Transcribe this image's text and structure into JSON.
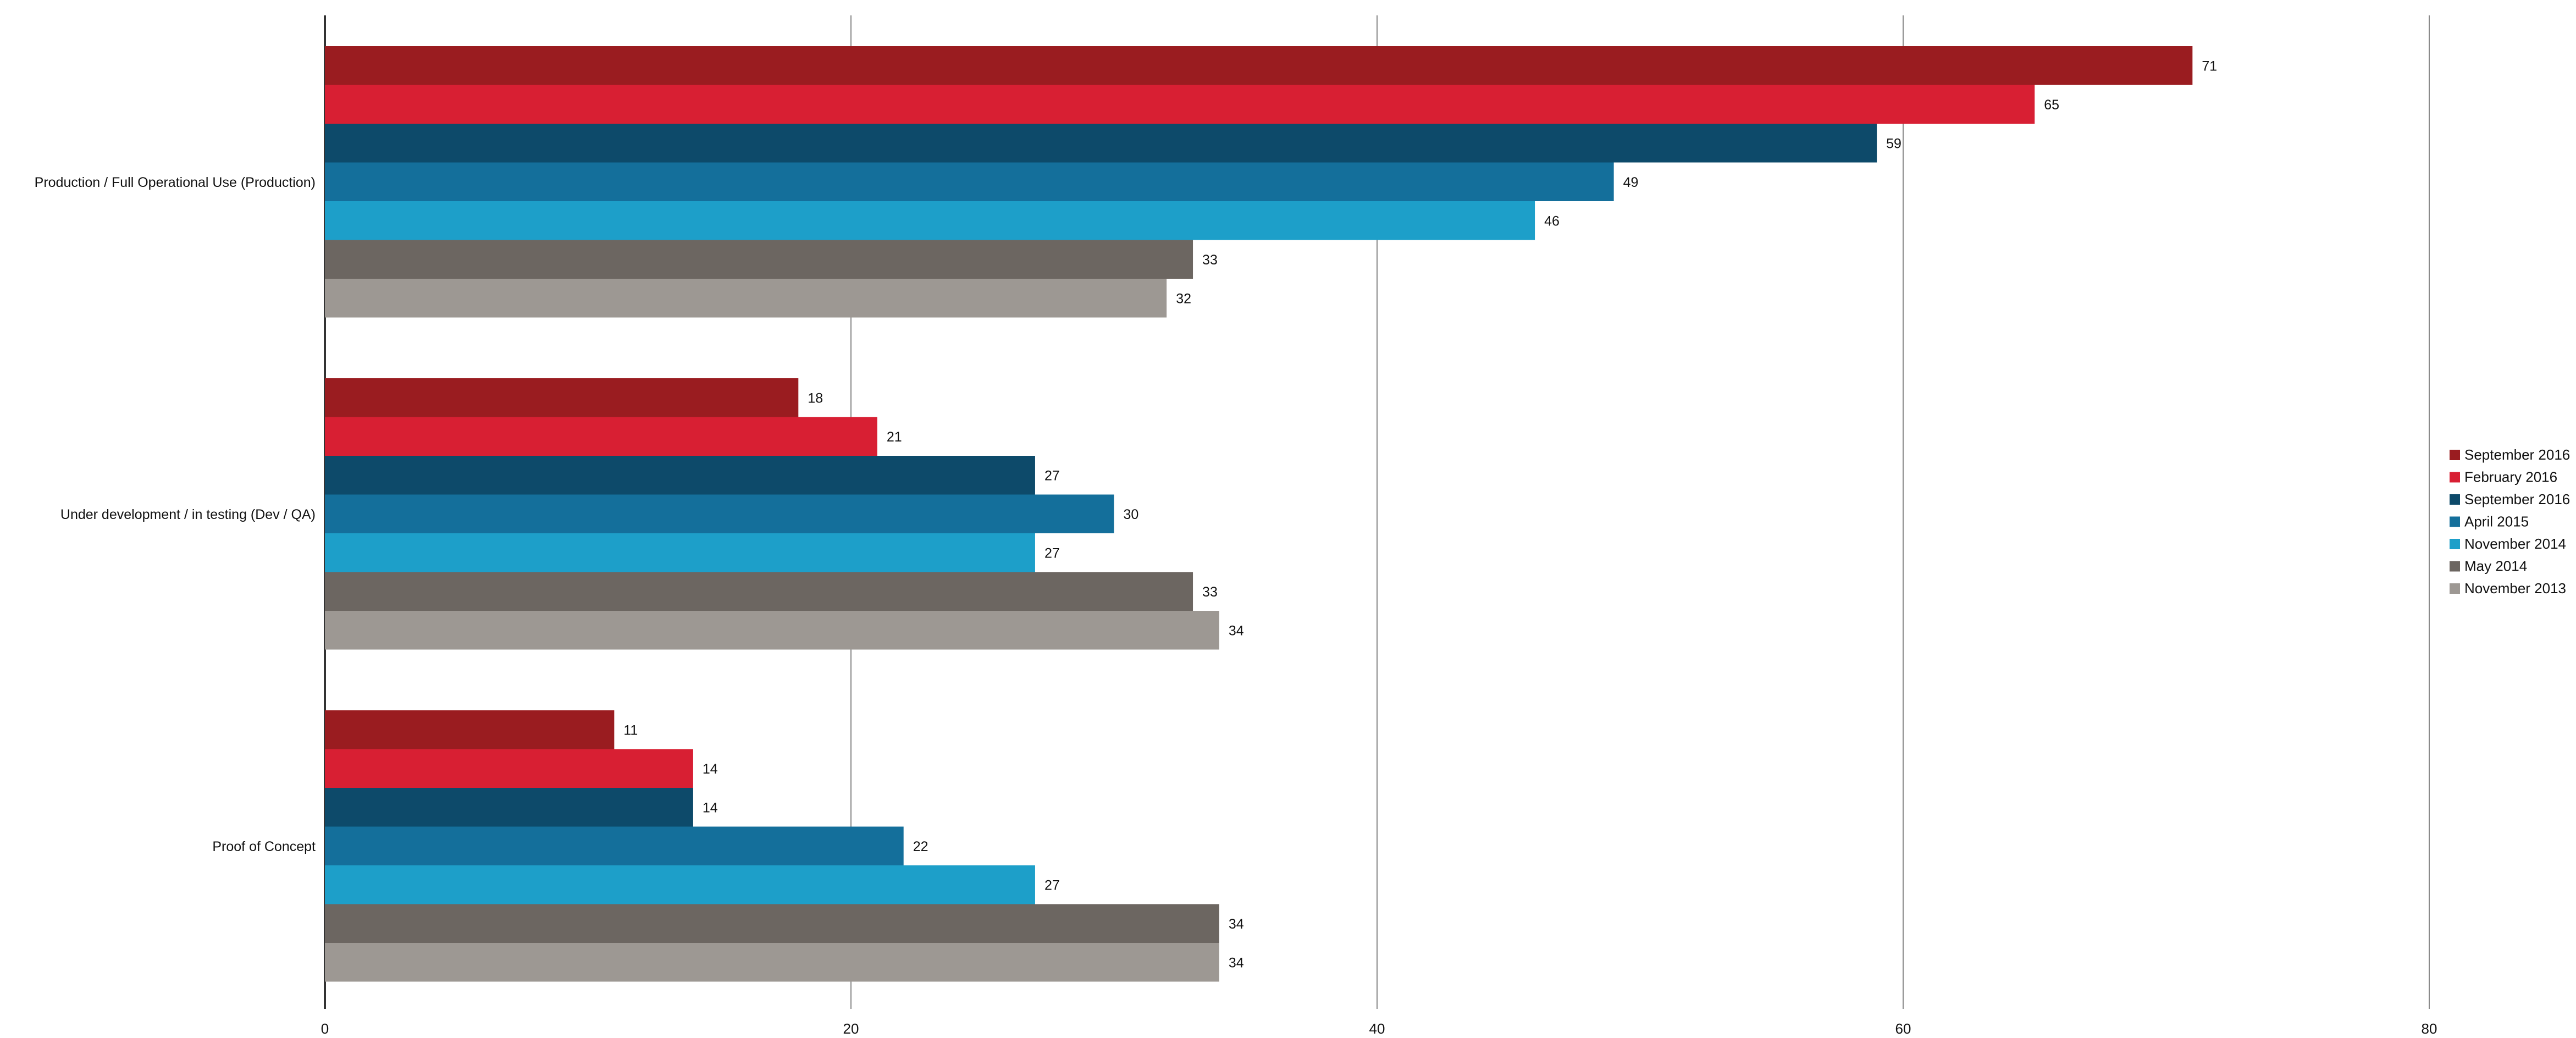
{
  "chart_data": {
    "type": "bar",
    "orientation": "horizontal",
    "categories": [
      "Production / Full Operational Use (Production)",
      "Under development / in testing (Dev / QA)",
      "Proof of Concept"
    ],
    "series": [
      {
        "name": "September 2016",
        "color": "#9a1c20",
        "values": [
          71,
          18,
          11
        ]
      },
      {
        "name": "February 2016",
        "color": "#d81f33",
        "values": [
          65,
          21,
          14
        ]
      },
      {
        "name": "September 2016",
        "color": "#0d4a6a",
        "values": [
          59,
          27,
          14
        ]
      },
      {
        "name": "April 2015",
        "color": "#146f9b",
        "values": [
          49,
          30,
          22
        ]
      },
      {
        "name": "November 2014",
        "color": "#1d9fc9",
        "values": [
          46,
          27,
          27
        ]
      },
      {
        "name": "May 2014",
        "color": "#6c6661",
        "values": [
          33,
          33,
          34
        ]
      },
      {
        "name": "November 2013",
        "color": "#9d9893",
        "values": [
          32,
          34,
          34
        ]
      }
    ],
    "xlim": [
      0,
      80
    ],
    "xticks": [
      0,
      20,
      40,
      60,
      80
    ],
    "grid": true,
    "data_labels": true,
    "legend_position": "right",
    "title": "",
    "xlabel": "",
    "ylabel": ""
  }
}
